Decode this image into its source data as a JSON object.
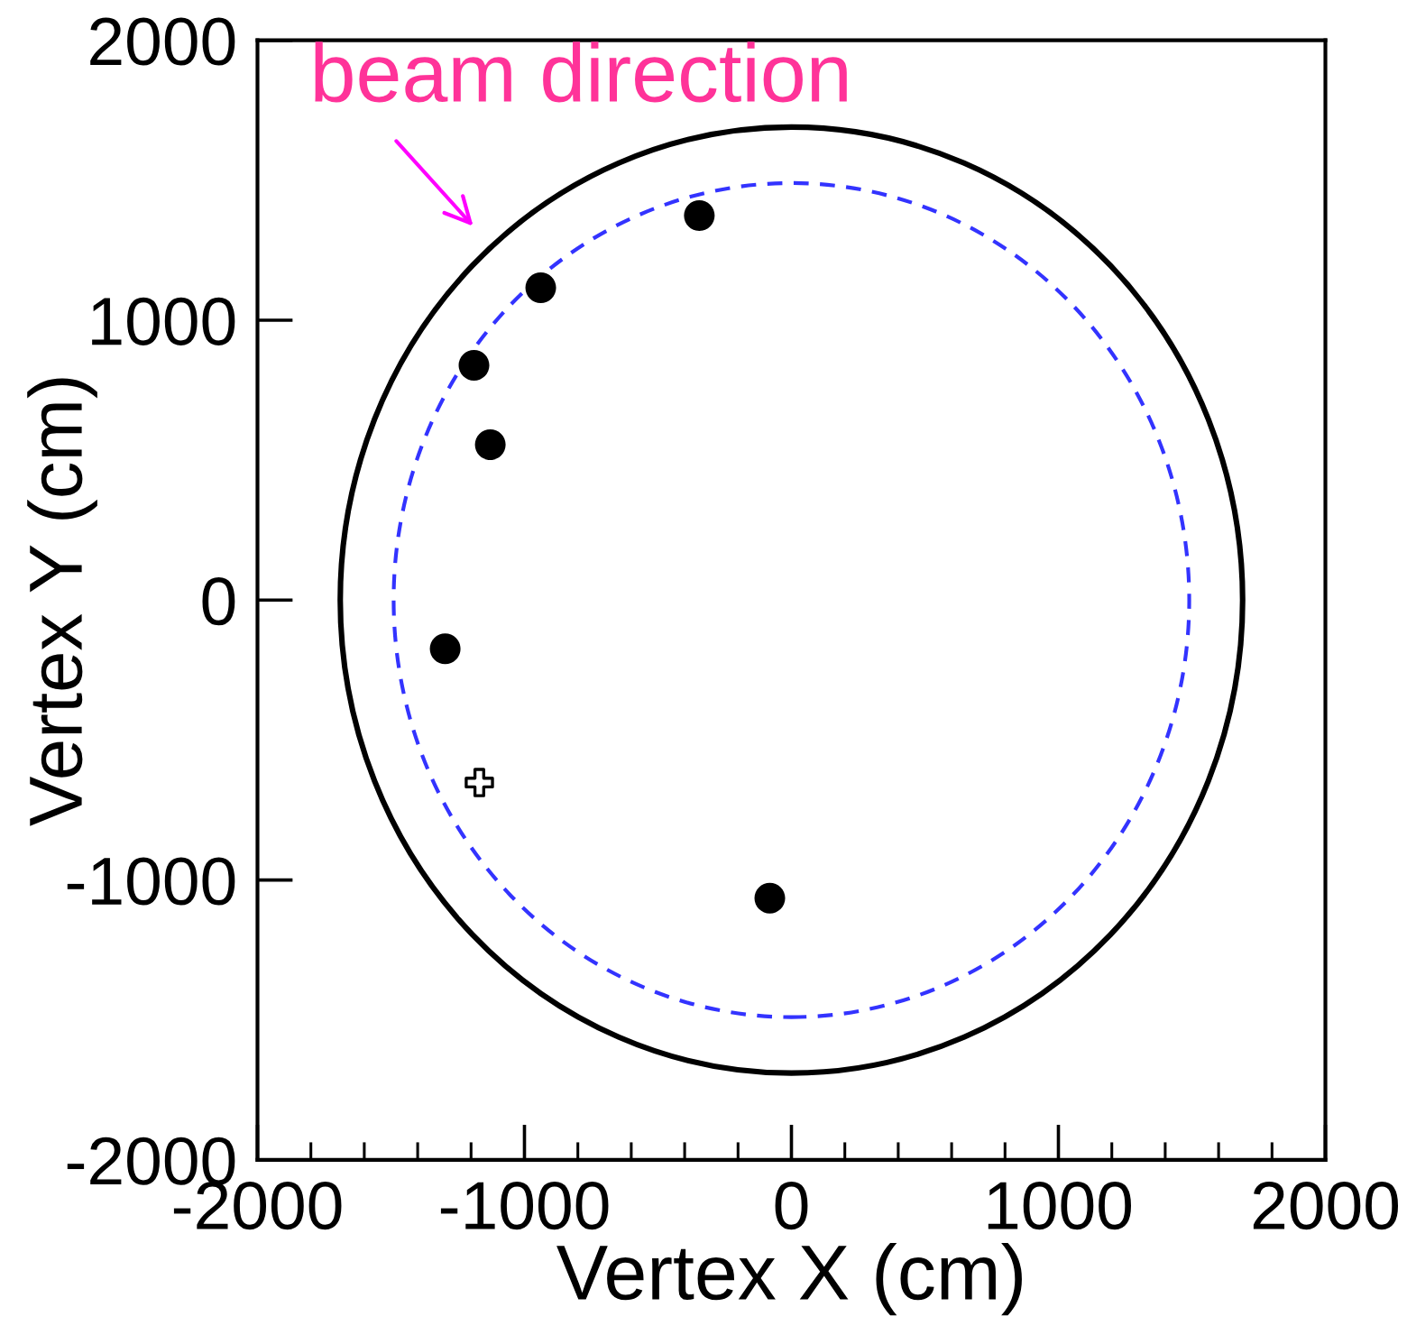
{
  "chart_data": {
    "type": "scatter",
    "xlabel": "Vertex X (cm)",
    "ylabel": "Vertex Y (cm)",
    "xlim": [
      -2000,
      2000
    ],
    "ylim": [
      -2000,
      2000
    ],
    "xticks": [
      -2000,
      -1000,
      0,
      1000,
      2000
    ],
    "yticks": [
      -2000,
      -1000,
      0,
      1000,
      2000
    ],
    "grid": false,
    "legend": false,
    "annotations": [
      "beam direction"
    ],
    "series": [
      {
        "color": "#000000",
        "marker": "circle",
        "x": [
          -345,
          -939,
          -1189,
          -1128,
          -1297,
          -81
        ],
        "values": [
          1374,
          1116,
          839,
          555,
          -174,
          -1065
        ]
      },
      {
        "color": "#000000",
        "marker": "cross",
        "x": [
          -1169
        ],
        "values": [
          -652
        ]
      }
    ]
  }
}
